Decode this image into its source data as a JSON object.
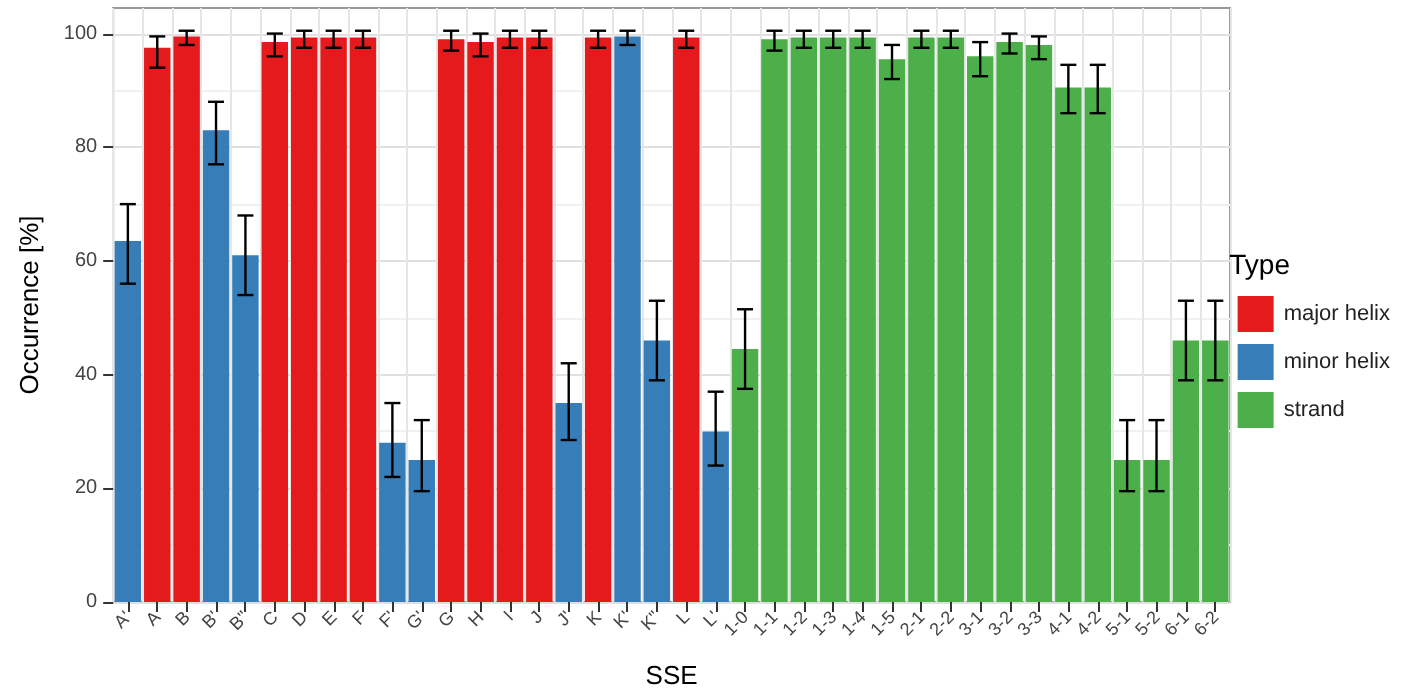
{
  "chart_data": {
    "type": "bar",
    "xlabel": "SSE",
    "ylabel": "Occurrence [%]",
    "legend_title": "Type",
    "categories": [
      "A'",
      "A",
      "B",
      "B'",
      "B\"",
      "C",
      "D",
      "E",
      "F",
      "F'",
      "G'",
      "G",
      "H",
      "I",
      "J",
      "J'",
      "K",
      "K'",
      "K\"",
      "L",
      "L'",
      "1-0",
      "1-1",
      "1-2",
      "1-3",
      "1-4",
      "1-5",
      "2-1",
      "2-2",
      "3-1",
      "3-2",
      "3-3",
      "4-1",
      "4-2",
      "5-1",
      "5-2",
      "6-1",
      "6-2"
    ],
    "series": [
      {
        "name": "major helix",
        "color": "#e41a1c",
        "values": [
          null,
          97.5,
          99.5,
          null,
          null,
          98.5,
          99.3,
          99.3,
          99.3,
          null,
          null,
          99,
          98.5,
          99.3,
          99.3,
          null,
          99.3,
          null,
          null,
          99.3,
          null,
          null,
          null,
          null,
          null,
          null,
          null,
          null,
          null,
          null,
          null,
          null,
          null,
          null,
          null,
          null,
          null,
          null
        ],
        "errors": [
          null,
          [
            94,
            99.5
          ],
          [
            98,
            100.5
          ],
          null,
          null,
          [
            96,
            100
          ],
          [
            97.5,
            100.5
          ],
          [
            97.5,
            100.5
          ],
          [
            97.5,
            100.5
          ],
          null,
          null,
          [
            97,
            100.5
          ],
          [
            96,
            100
          ],
          [
            97.5,
            100.5
          ],
          [
            97.5,
            100.5
          ],
          null,
          [
            97.5,
            100.5
          ],
          null,
          null,
          [
            97.5,
            100.5
          ],
          null,
          null,
          null,
          null,
          null,
          null,
          null,
          null,
          null,
          null,
          null,
          null,
          null,
          null,
          null,
          null,
          null,
          null
        ]
      },
      {
        "name": "minor helix",
        "color": "#377eb8",
        "values": [
          63.5,
          null,
          null,
          83,
          61,
          null,
          null,
          null,
          null,
          28,
          25,
          null,
          null,
          null,
          null,
          35,
          null,
          99.5,
          46,
          null,
          30,
          null,
          null,
          null,
          null,
          null,
          null,
          null,
          null,
          null,
          null,
          null,
          null,
          null,
          null,
          null,
          null,
          null
        ],
        "errors": [
          [
            56,
            70
          ],
          null,
          null,
          [
            77,
            88
          ],
          [
            54,
            68
          ],
          null,
          null,
          null,
          null,
          [
            22,
            35
          ],
          [
            19.5,
            32
          ],
          null,
          null,
          null,
          null,
          [
            28.5,
            42
          ],
          null,
          [
            98,
            100.5
          ],
          [
            39,
            53
          ],
          null,
          [
            24,
            37
          ],
          null,
          null,
          null,
          null,
          null,
          null,
          null,
          null,
          null,
          null,
          null,
          null,
          null,
          null,
          null,
          null,
          null
        ]
      },
      {
        "name": "strand",
        "color": "#4daf4a",
        "values": [
          null,
          null,
          null,
          null,
          null,
          null,
          null,
          null,
          null,
          null,
          null,
          null,
          null,
          null,
          null,
          null,
          null,
          null,
          null,
          null,
          null,
          44.5,
          99,
          99.3,
          99.3,
          99.3,
          95.5,
          99.3,
          99.3,
          96,
          98.5,
          98,
          90.5,
          90.5,
          25,
          25,
          46,
          46
        ],
        "errors": [
          null,
          null,
          null,
          null,
          null,
          null,
          null,
          null,
          null,
          null,
          null,
          null,
          null,
          null,
          null,
          null,
          null,
          null,
          null,
          null,
          null,
          [
            37.5,
            51.5
          ],
          [
            97,
            100.5
          ],
          [
            97.5,
            100.5
          ],
          [
            97.5,
            100.5
          ],
          [
            97.5,
            100.5
          ],
          [
            92,
            98
          ],
          [
            97.5,
            100.5
          ],
          [
            97.5,
            100.5
          ],
          [
            92.5,
            98.5
          ],
          [
            96.5,
            100
          ],
          [
            95.5,
            99.5
          ],
          [
            86,
            94.5
          ],
          [
            86,
            94.5
          ],
          [
            19.5,
            32
          ],
          [
            19.5,
            32
          ],
          [
            39,
            53
          ],
          [
            39,
            53
          ]
        ]
      }
    ],
    "ylim": [
      0,
      104.5
    ],
    "yticks": [
      0,
      20,
      40,
      60,
      80,
      100
    ],
    "grid": true,
    "legend": "right"
  }
}
